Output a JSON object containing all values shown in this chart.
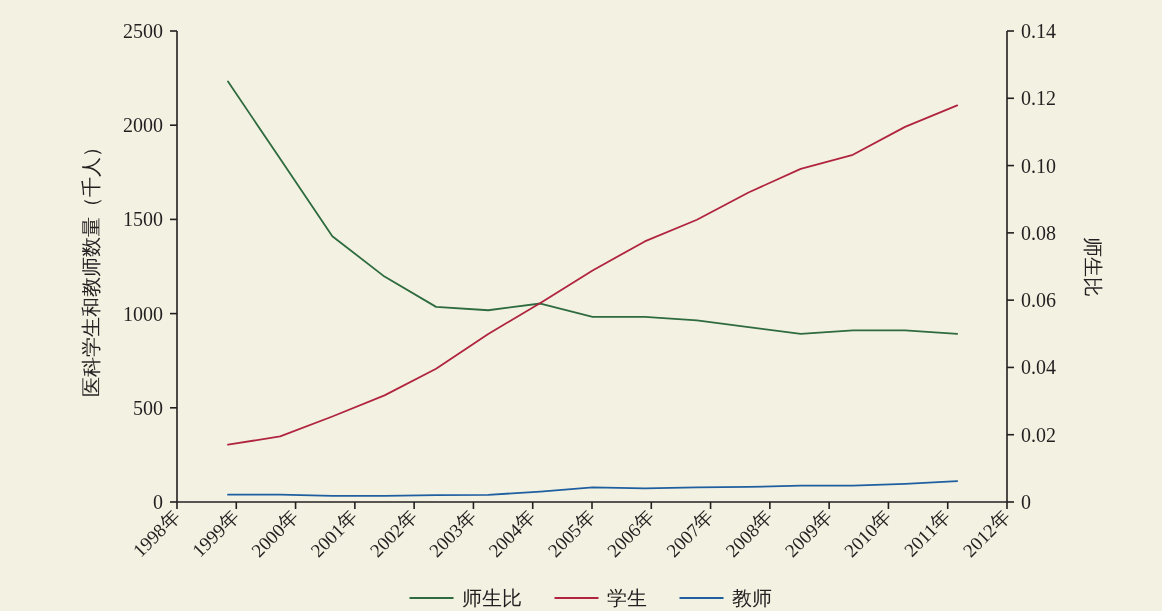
{
  "chart_data": {
    "type": "line",
    "ylabel": "医科学生和教师数量（千人）",
    "y2label": "师生比",
    "x": [
      1998.86,
      1999.74,
      2000.62,
      2001.5,
      2002.37,
      2003.25,
      2004.13,
      2005.01,
      2005.89,
      2006.77,
      2007.64,
      2008.52,
      2009.4,
      2010.28,
      2011.16
    ],
    "xlim": [
      1998,
      2012
    ],
    "xticks": [
      {
        "value": 1998,
        "label": "1998年"
      },
      {
        "value": 1999,
        "label": "1999年"
      },
      {
        "value": 2000,
        "label": "2000年"
      },
      {
        "value": 2001,
        "label": "2001年"
      },
      {
        "value": 2002,
        "label": "2002年"
      },
      {
        "value": 2003,
        "label": "2003年"
      },
      {
        "value": 2004,
        "label": "2004年"
      },
      {
        "value": 2005,
        "label": "2005年"
      },
      {
        "value": 2006,
        "label": "2006年"
      },
      {
        "value": 2007,
        "label": "2007年"
      },
      {
        "value": 2008,
        "label": "2008年"
      },
      {
        "value": 2009,
        "label": "2009年"
      },
      {
        "value": 2010,
        "label": "2010年"
      },
      {
        "value": 2011,
        "label": "2011年"
      },
      {
        "value": 2012,
        "label": "2012年"
      }
    ],
    "ylim": [
      0,
      2500
    ],
    "yticks": [
      0,
      500,
      1000,
      1500,
      2000,
      2500
    ],
    "y2lim": [
      0,
      0.14
    ],
    "y2ticks": [
      0,
      {
        "value": 0.02,
        "label": "0.02"
      },
      {
        "value": 0.04,
        "label": "0.04"
      },
      {
        "value": 0.06,
        "label": "0.06"
      },
      {
        "value": 0.08,
        "label": "0.08"
      },
      {
        "value": 0.1,
        "label": "0.10"
      },
      {
        "value": 0.12,
        "label": "0.12"
      },
      {
        "value": 0.14,
        "label": "0.14"
      }
    ],
    "series": [
      {
        "name": "师生比",
        "color": "#2e6b3e",
        "axis": "y2",
        "values": [
          0.125,
          0.102,
          0.079,
          0.067,
          0.058,
          0.057,
          0.059,
          0.055,
          0.055,
          0.054,
          0.052,
          0.05,
          0.051,
          0.051,
          0.05
        ]
      },
      {
        "name": "学生",
        "color": "#b0243f",
        "values": [
          304,
          348,
          454,
          566,
          707,
          892,
          1056,
          1229,
          1383,
          1498,
          1643,
          1768,
          1843,
          1991,
          2105
        ]
      },
      {
        "name": "教师",
        "color": "#1f5fa0",
        "values": [
          39,
          39,
          32,
          32,
          36,
          38,
          55,
          78,
          72,
          78,
          80,
          87,
          87,
          96,
          111
        ]
      }
    ],
    "legend": "bottom",
    "grid": false,
    "marker": "none",
    "line_style": "solid"
  }
}
